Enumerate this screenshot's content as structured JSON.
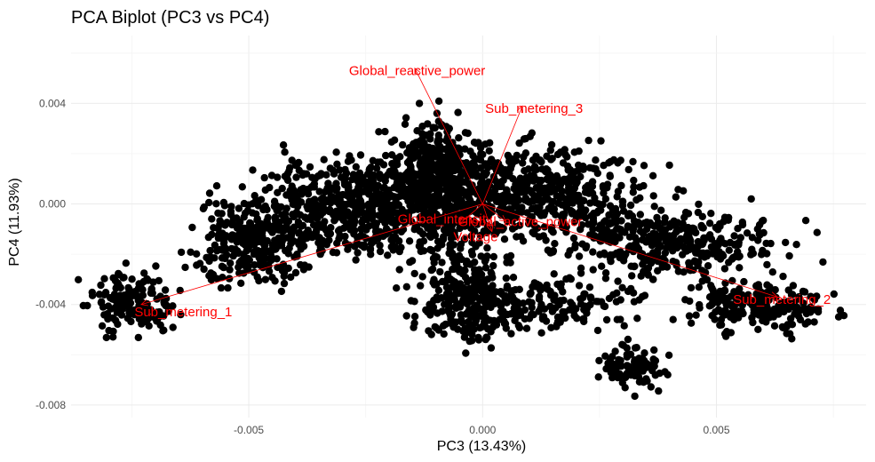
{
  "chart_data": {
    "type": "scatter",
    "title": "PCA Biplot (PC3 vs PC4)",
    "xlabel": "PC3 (13.43%)",
    "ylabel": "PC4 (11.93%)",
    "xlim": [
      -0.0088,
      0.0082
    ],
    "ylim": [
      -0.0085,
      0.0067
    ],
    "x_ticks": [
      -0.005,
      0.0,
      0.005
    ],
    "x_tick_labels": [
      "-0.005",
      "0.000",
      "0.005"
    ],
    "y_ticks": [
      -0.008,
      -0.004,
      0.0,
      0.004
    ],
    "y_tick_labels": [
      "-0.008",
      "-0.004",
      "0.000",
      "0.004"
    ],
    "grid": true,
    "point_color": "#000000",
    "arrow_color": "#ff0000",
    "cloud_regions": [
      {
        "cx": -0.0025,
        "cy": -0.0002,
        "rx": 0.0022,
        "ry": 0.0018,
        "n": 700
      },
      {
        "cx": -0.001,
        "cy": 0.0012,
        "rx": 0.0009,
        "ry": 0.0018,
        "n": 350
      },
      {
        "cx": 0.001,
        "cy": 0.0005,
        "rx": 0.0022,
        "ry": 0.0017,
        "n": 550
      },
      {
        "cx": 0.004,
        "cy": -0.0015,
        "rx": 0.002,
        "ry": 0.0012,
        "n": 350
      },
      {
        "cx": 0.006,
        "cy": -0.004,
        "rx": 0.0013,
        "ry": 0.0009,
        "n": 220
      },
      {
        "cx": -0.0075,
        "cy": -0.004,
        "rx": 0.0008,
        "ry": 0.0011,
        "n": 160
      },
      {
        "cx": -0.005,
        "cy": -0.0015,
        "rx": 0.001,
        "ry": 0.0015,
        "n": 250
      },
      {
        "cx": -0.0003,
        "cy": -0.0035,
        "rx": 0.0009,
        "ry": 0.0018,
        "n": 250
      },
      {
        "cx": 0.0032,
        "cy": -0.0065,
        "rx": 0.0006,
        "ry": 0.0008,
        "n": 90
      },
      {
        "cx": 0.0012,
        "cy": -0.004,
        "rx": 0.0022,
        "ry": 0.001,
        "n": 200
      }
    ],
    "arrows": [
      {
        "name": "Global_reactive_power",
        "x": -0.00145,
        "y": 0.0054,
        "label_x": -0.0014,
        "label_y": 0.0053
      },
      {
        "name": "Sub_metering_3",
        "x": 0.00085,
        "y": 0.0039,
        "label_x": 0.0011,
        "label_y": 0.0038
      },
      {
        "name": "Sub_metering_1",
        "x": -0.0073,
        "y": -0.004,
        "label_x": -0.0064,
        "label_y": -0.0043
      },
      {
        "name": "Sub_metering_2",
        "x": 0.0063,
        "y": -0.0037,
        "label_x": 0.0064,
        "label_y": -0.0038
      },
      {
        "name": "Global_intensity",
        "x": -0.0005,
        "y": -0.0008,
        "label_x": -0.0008,
        "label_y": -0.0006
      },
      {
        "name": "Global_active_power",
        "x": 0.0005,
        "y": -0.0007,
        "label_x": 0.0008,
        "label_y": -0.0007
      },
      {
        "name": "Voltage",
        "x": 0.0002,
        "y": -0.0011,
        "label_x": -0.00015,
        "label_y": -0.0013
      }
    ]
  }
}
